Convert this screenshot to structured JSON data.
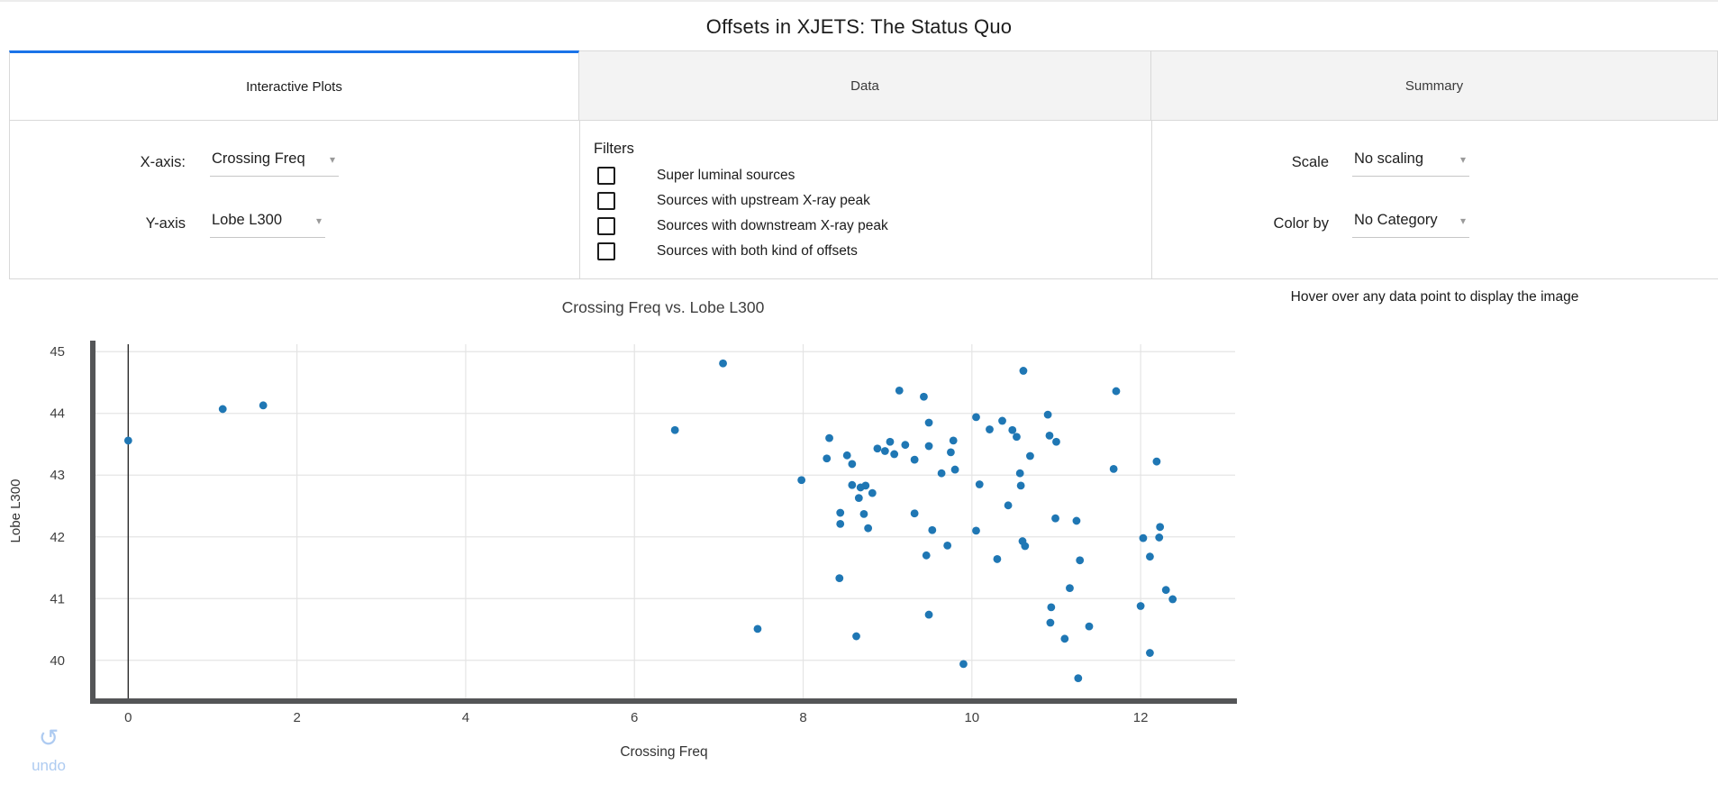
{
  "header": {
    "title": "Offsets in XJETS: The Status Quo"
  },
  "tabs": [
    {
      "label": "Interactive Plots",
      "active": true
    },
    {
      "label": "Data",
      "active": false
    },
    {
      "label": "Summary",
      "active": false
    }
  ],
  "controls": {
    "x_axis": {
      "label": "X-axis:",
      "value": "Crossing Freq"
    },
    "y_axis": {
      "label": "Y-axis",
      "value": "Lobe L300"
    },
    "scale": {
      "label": "Scale",
      "value": "No scaling"
    },
    "color_by": {
      "label": "Color by",
      "value": "No Category"
    }
  },
  "filters": {
    "title": "Filters",
    "items": [
      {
        "label": "Super luminal sources",
        "checked": false
      },
      {
        "label": "Sources with upstream X-ray peak",
        "checked": false
      },
      {
        "label": "Sources with downstream X-ray peak",
        "checked": false
      },
      {
        "label": "Sources with both kind of offsets",
        "checked": false
      }
    ]
  },
  "plot": {
    "hover_hint": "Hover over any data point to display the image"
  },
  "undo": {
    "label": "undo"
  },
  "icons": {
    "chevron_down": "▾",
    "undo_arrow": "↺"
  },
  "colors": {
    "accent_blue": "#1a73e8",
    "marker_blue": "#1f77b4",
    "undo_blue": "#aecbf1",
    "gridline": "#e4e4e4",
    "spine": "#545557",
    "tick_text": "#3f3f3f"
  },
  "chart_data": {
    "type": "scatter",
    "title": "Crossing Freq vs. Lobe L300",
    "xlabel": "Crossing Freq",
    "ylabel": "Lobe L300",
    "xlim": [
      -0.42,
      13.12
    ],
    "ylim": [
      39.34,
      45.12
    ],
    "xticks": [
      0,
      2,
      4,
      6,
      8,
      10,
      12
    ],
    "yticks": [
      40,
      41,
      42,
      43,
      44,
      45
    ],
    "grid": true,
    "vline_x": 0,
    "legend": "none",
    "points": [
      [
        0.0,
        43.56
      ],
      [
        1.12,
        44.07
      ],
      [
        1.6,
        44.13
      ],
      [
        6.48,
        43.73
      ],
      [
        7.05,
        44.81
      ],
      [
        7.46,
        40.51
      ],
      [
        8.63,
        40.39
      ],
      [
        10.61,
        44.69
      ],
      [
        9.14,
        44.37
      ],
      [
        9.43,
        44.27
      ],
      [
        11.71,
        44.36
      ],
      [
        10.05,
        43.94
      ],
      [
        10.36,
        43.88
      ],
      [
        10.9,
        43.98
      ],
      [
        9.49,
        43.85
      ],
      [
        10.48,
        43.73
      ],
      [
        10.53,
        43.62
      ],
      [
        10.21,
        43.74
      ],
      [
        10.92,
        43.64
      ],
      [
        11.0,
        43.54
      ],
      [
        8.31,
        43.6
      ],
      [
        9.03,
        43.54
      ],
      [
        9.21,
        43.49
      ],
      [
        8.88,
        43.43
      ],
      [
        8.97,
        43.39
      ],
      [
        9.08,
        43.34
      ],
      [
        9.49,
        43.47
      ],
      [
        9.75,
        43.37
      ],
      [
        9.78,
        43.56
      ],
      [
        8.28,
        43.27
      ],
      [
        8.52,
        43.32
      ],
      [
        8.58,
        43.18
      ],
      [
        9.32,
        43.25
      ],
      [
        10.69,
        43.31
      ],
      [
        11.68,
        43.1
      ],
      [
        9.64,
        43.03
      ],
      [
        9.8,
        43.09
      ],
      [
        10.57,
        43.03
      ],
      [
        7.98,
        42.92
      ],
      [
        10.09,
        42.85
      ],
      [
        10.58,
        42.83
      ],
      [
        8.58,
        42.84
      ],
      [
        8.68,
        42.8
      ],
      [
        8.74,
        42.83
      ],
      [
        8.82,
        42.71
      ],
      [
        8.66,
        42.63
      ],
      [
        10.43,
        42.51
      ],
      [
        8.44,
        42.39
      ],
      [
        8.72,
        42.37
      ],
      [
        9.32,
        42.38
      ],
      [
        10.99,
        42.3
      ],
      [
        11.24,
        42.26
      ],
      [
        8.44,
        42.21
      ],
      [
        8.77,
        42.14
      ],
      [
        9.53,
        42.11
      ],
      [
        10.05,
        42.1
      ],
      [
        10.6,
        41.93
      ],
      [
        10.63,
        41.85
      ],
      [
        9.71,
        41.86
      ],
      [
        9.46,
        41.7
      ],
      [
        10.3,
        41.64
      ],
      [
        11.28,
        41.62
      ],
      [
        8.43,
        41.33
      ],
      [
        11.16,
        41.17
      ],
      [
        12.19,
        43.22
      ],
      [
        12.23,
        42.16
      ],
      [
        12.22,
        41.99
      ],
      [
        12.03,
        41.98
      ],
      [
        12.11,
        41.68
      ],
      [
        12.3,
        41.14
      ],
      [
        12.38,
        40.99
      ],
      [
        12.0,
        40.88
      ],
      [
        10.94,
        40.86
      ],
      [
        10.93,
        40.61
      ],
      [
        11.1,
        40.35
      ],
      [
        11.39,
        40.55
      ],
      [
        12.11,
        40.12
      ],
      [
        11.26,
        39.71
      ],
      [
        9.49,
        40.74
      ],
      [
        9.9,
        39.94
      ]
    ]
  }
}
